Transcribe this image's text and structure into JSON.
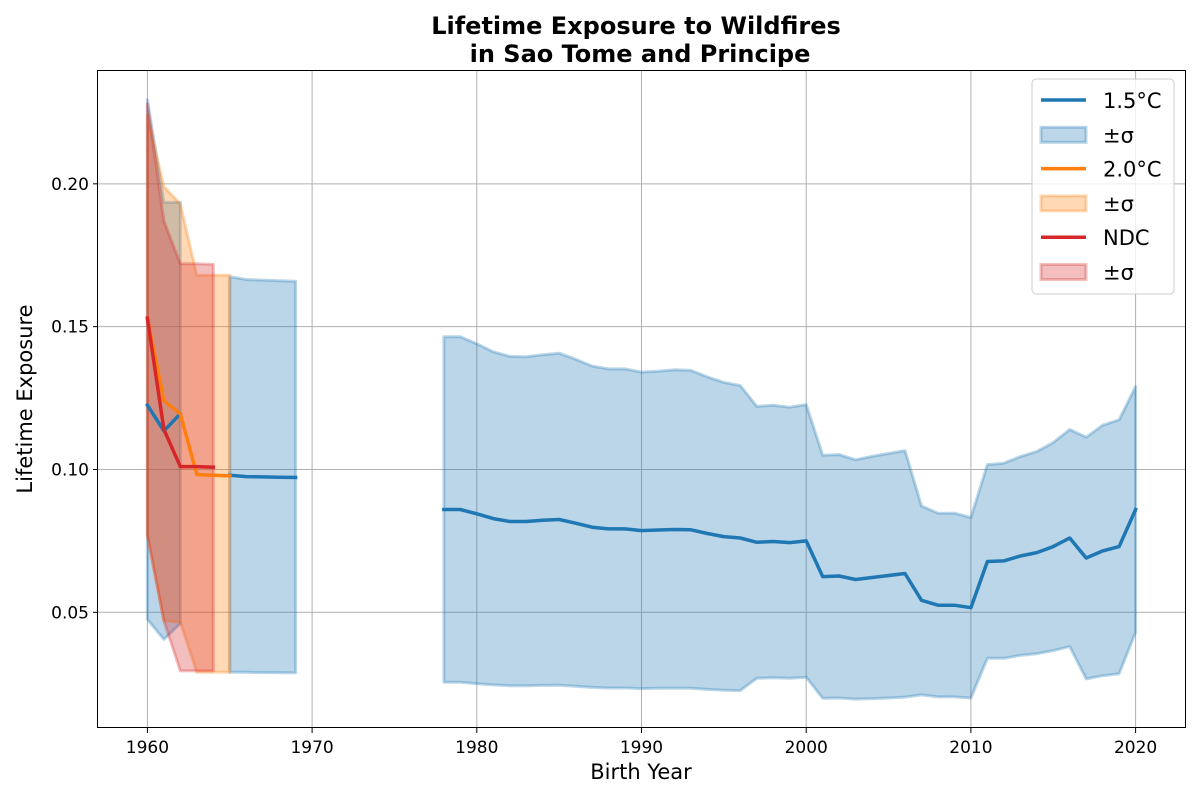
{
  "chart_data": {
    "type": "line",
    "title_line1": "Lifetime Exposure to Wildfires",
    "title_line2": "in Sao Tome and Principe",
    "xlabel": "Birth Year",
    "ylabel": "Lifetime Exposure",
    "xlim": [
      1957,
      2023
    ],
    "ylim": [
      0.0095,
      0.2395
    ],
    "xticks": [
      1960,
      1970,
      1980,
      1990,
      2000,
      2010,
      2020
    ],
    "yticks": [
      0.05,
      0.1,
      0.15,
      0.2
    ],
    "ytick_labels": [
      "0.05",
      "0.10",
      "0.15",
      "0.20"
    ],
    "grid": true,
    "legend_position": "upper right",
    "series": [
      {
        "name": "1.5°C",
        "band_label": "±σ",
        "color": "#1f77b4",
        "segments": [
          {
            "x": [
              1960,
              1961,
              1962
            ],
            "y": [
              0.1225,
              0.1135,
              0.1195
            ],
            "upper": [
              0.2295,
              0.1935,
              0.1935
            ],
            "lower": [
              0.0475,
              0.0405,
              0.046
            ]
          },
          {
            "x": [
              1965,
              1966,
              1967,
              1968,
              1969
            ],
            "y": [
              0.098,
              0.0975,
              0.0974,
              0.0973,
              0.0972
            ],
            "upper": [
              0.1675,
              0.1665,
              0.1663,
              0.1661,
              0.1659
            ],
            "lower": [
              0.029,
              0.029,
              0.0289,
              0.0289,
              0.0288
            ]
          },
          {
            "x": [
              1978,
              1979,
              1980,
              1981,
              1982,
              1983,
              1984,
              1985,
              1986,
              1987,
              1988,
              1989,
              1990,
              1991,
              1992,
              1993,
              1994,
              1995,
              1996,
              1997,
              1998,
              1999,
              2000,
              2001,
              2002,
              2003,
              2004,
              2005,
              2006,
              2007,
              2008,
              2009,
              2010,
              2011,
              2012,
              2013,
              2014,
              2015,
              2016,
              2017,
              2018,
              2019,
              2020
            ],
            "y": [
              0.086,
              0.086,
              0.0845,
              0.0828,
              0.0818,
              0.0818,
              0.0822,
              0.0825,
              0.0812,
              0.0798,
              0.0792,
              0.0792,
              0.0786,
              0.0788,
              0.079,
              0.0789,
              0.0776,
              0.0765,
              0.076,
              0.0745,
              0.0748,
              0.0744,
              0.075,
              0.0625,
              0.0627,
              0.0615,
              0.0622,
              0.0629,
              0.0636,
              0.0542,
              0.0525,
              0.0525,
              0.0516,
              0.0678,
              0.068,
              0.0697,
              0.0709,
              0.073,
              0.076,
              0.069,
              0.0715,
              0.073,
              0.086
            ],
            "upper": [
              0.1465,
              0.1465,
              0.144,
              0.1412,
              0.1396,
              0.1395,
              0.1402,
              0.1407,
              0.1386,
              0.1362,
              0.1352,
              0.1352,
              0.1341,
              0.1344,
              0.1349,
              0.1347,
              0.1324,
              0.1305,
              0.1294,
              0.1221,
              0.1225,
              0.1218,
              0.1227,
              0.105,
              0.1052,
              0.1034,
              0.1046,
              0.1056,
              0.1066,
              0.0872,
              0.0847,
              0.0847,
              0.0832,
              0.1017,
              0.1022,
              0.1045,
              0.1063,
              0.1094,
              0.114,
              0.1113,
              0.1155,
              0.1174,
              0.129
            ],
            "lower": [
              0.0255,
              0.0255,
              0.025,
              0.0246,
              0.0243,
              0.0243,
              0.0244,
              0.0245,
              0.0241,
              0.0237,
              0.0235,
              0.0235,
              0.0233,
              0.0234,
              0.0234,
              0.0234,
              0.023,
              0.0227,
              0.0226,
              0.0269,
              0.0271,
              0.0269,
              0.0273,
              0.0199,
              0.02,
              0.0196,
              0.0198,
              0.02,
              0.0203,
              0.0211,
              0.0204,
              0.0204,
              0.02,
              0.0339,
              0.0339,
              0.0349,
              0.0355,
              0.0366,
              0.038,
              0.0267,
              0.0278,
              0.0285,
              0.043
            ]
          }
        ]
      },
      {
        "name": "2.0°C",
        "band_label": "±σ",
        "color": "#ff7f0e",
        "segments": [
          {
            "x": [
              1960,
              1961,
              1962,
              1963,
              1964,
              1965
            ],
            "y": [
              0.153,
              0.124,
              0.1195,
              0.0982,
              0.098,
              0.0978
            ],
            "upper": [
              0.224,
              0.199,
              0.193,
              0.168,
              0.168,
              0.168
            ],
            "lower": [
              0.077,
              0.047,
              0.0465,
              0.029,
              0.029,
              0.029
            ]
          }
        ]
      },
      {
        "name": "NDC",
        "band_label": "±σ",
        "color": "#d62728",
        "segments": [
          {
            "x": [
              1960,
              1961,
              1962,
              1963,
              1964
            ],
            "y": [
              0.153,
              0.114,
              0.101,
              0.101,
              0.1008
            ],
            "upper": [
              0.228,
              0.187,
              0.172,
              0.172,
              0.1718
            ],
            "lower": [
              0.077,
              0.047,
              0.0295,
              0.0295,
              0.0295
            ]
          }
        ]
      }
    ]
  }
}
